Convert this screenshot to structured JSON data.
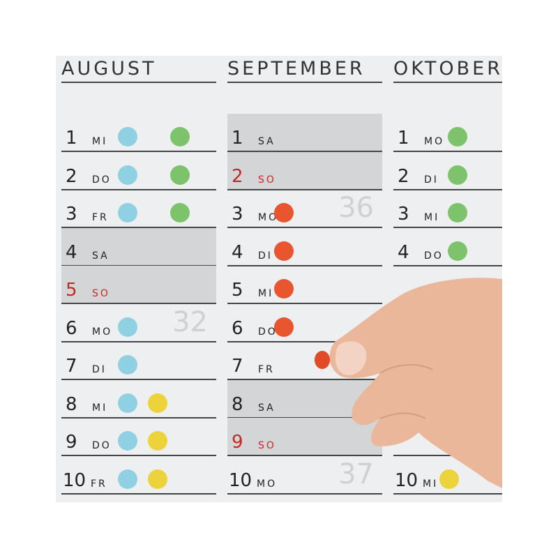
{
  "colors": {
    "blue": "#8fd0e3",
    "green": "#7cc36b",
    "yellow": "#ecd23b",
    "red": "#e9552e",
    "weekend_red": "#c42a22"
  },
  "months": [
    {
      "name": "AUGUST",
      "days": [
        {
          "d": "1",
          "wd": "MI",
          "dots": [
            [
              "blue",
              95
            ],
            [
              "green",
              170
            ]
          ]
        },
        {
          "d": "2",
          "wd": "DO",
          "dots": [
            [
              "blue",
              95
            ],
            [
              "green",
              170
            ]
          ]
        },
        {
          "d": "3",
          "wd": "FR",
          "dots": [
            [
              "blue",
              95
            ],
            [
              "green",
              170
            ]
          ]
        },
        {
          "d": "4",
          "wd": "SA",
          "we": true
        },
        {
          "d": "5",
          "wd": "SO",
          "we": true,
          "red": true
        },
        {
          "d": "6",
          "wd": "MO",
          "dots": [
            [
              "blue",
              95
            ]
          ],
          "week": "32"
        },
        {
          "d": "7",
          "wd": "DI",
          "dots": [
            [
              "blue",
              95
            ]
          ]
        },
        {
          "d": "8",
          "wd": "MI",
          "dots": [
            [
              "blue",
              95
            ],
            [
              "yellow",
              138
            ]
          ]
        },
        {
          "d": "9",
          "wd": "DO",
          "dots": [
            [
              "blue",
              95
            ],
            [
              "yellow",
              138
            ]
          ]
        },
        {
          "d": "10",
          "wd": "FR",
          "dots": [
            [
              "blue",
              95
            ],
            [
              "yellow",
              138
            ]
          ]
        }
      ]
    },
    {
      "name": "SEPTEMBER",
      "days": [
        {
          "d": "1",
          "wd": "SA",
          "we": true
        },
        {
          "d": "2",
          "wd": "SO",
          "we": true,
          "red": true
        },
        {
          "d": "3",
          "wd": "MO",
          "dots": [
            [
              "red",
              81
            ]
          ],
          "week": "36"
        },
        {
          "d": "4",
          "wd": "DI",
          "dots": [
            [
              "red",
              81
            ]
          ]
        },
        {
          "d": "5",
          "wd": "MI",
          "dots": [
            [
              "red",
              81
            ]
          ]
        },
        {
          "d": "6",
          "wd": "DO",
          "dots": [
            [
              "red",
              81
            ]
          ]
        },
        {
          "d": "7",
          "wd": "FR"
        },
        {
          "d": "8",
          "wd": "SA",
          "we": true
        },
        {
          "d": "9",
          "wd": "SO",
          "we": true,
          "red": true
        },
        {
          "d": "10",
          "wd": "MO",
          "week": "37"
        }
      ]
    },
    {
      "name": "OKTOBER",
      "days": [
        {
          "d": "1",
          "wd": "MO",
          "dots": [
            [
              "green",
              92
            ]
          ]
        },
        {
          "d": "2",
          "wd": "DI",
          "dots": [
            [
              "green",
              92
            ]
          ]
        },
        {
          "d": "3",
          "wd": "MI",
          "dots": [
            [
              "green",
              92
            ]
          ]
        },
        {
          "d": "4",
          "wd": "DO",
          "dots": [
            [
              "green",
              92
            ]
          ]
        },
        {
          "d": "",
          "wd": ""
        },
        {
          "d": "",
          "wd": ""
        },
        {
          "d": "",
          "wd": ""
        },
        {
          "d": "",
          "wd": ""
        },
        {
          "d": "",
          "wd": ""
        },
        {
          "d": "10",
          "wd": "MI",
          "dots": [
            [
              "yellow",
              80
            ]
          ]
        }
      ]
    }
  ]
}
